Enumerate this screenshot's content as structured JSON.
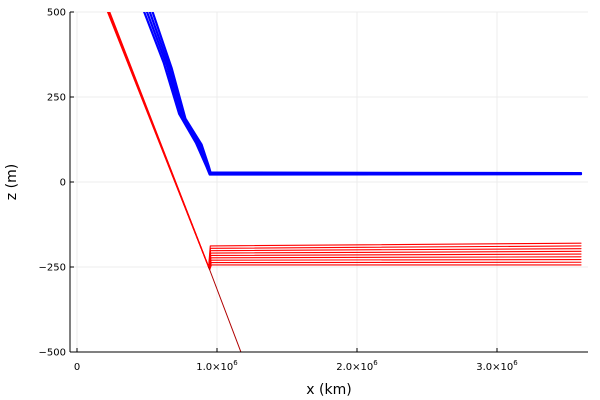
{
  "chart_data": {
    "type": "line",
    "title": "",
    "xlabel": "x (km)",
    "ylabel": "z (m)",
    "xlim": [
      -50000,
      3650000
    ],
    "ylim": [
      -500,
      500
    ],
    "grid": true,
    "legend": "none",
    "x_ticks": [
      {
        "value": 0,
        "text": "0",
        "sup": ""
      },
      {
        "value": 1000000,
        "text": "1.0×10",
        "sup": "6"
      },
      {
        "value": 2000000,
        "text": "2.0×10",
        "sup": "6"
      },
      {
        "value": 3000000,
        "text": "3.0×10",
        "sup": "6"
      }
    ],
    "y_ticks": [
      {
        "value": -500,
        "text": "−500"
      },
      {
        "value": -250,
        "text": "−250"
      },
      {
        "value": 0,
        "text": "0"
      },
      {
        "value": 250,
        "text": "250"
      },
      {
        "value": 500,
        "text": "500"
      }
    ],
    "blue_color": "#0000ff",
    "red_color": "#ff0000",
    "darkred_color": "#b00000",
    "series": [
      {
        "group": "blue",
        "color": "#0000ff",
        "width": 2.2,
        "values": [
          [
            480000,
            500
          ],
          [
            620000,
            350
          ],
          [
            730000,
            200
          ],
          [
            850000,
            115
          ],
          [
            925000,
            45
          ],
          [
            948000,
            22
          ],
          [
            3600000,
            23
          ]
        ]
      },
      {
        "group": "blue",
        "color": "#0000ff",
        "width": 2.2,
        "values": [
          [
            500000,
            500
          ],
          [
            640000,
            345
          ],
          [
            745000,
            195
          ],
          [
            865000,
            113
          ],
          [
            930000,
            46
          ],
          [
            950000,
            24
          ],
          [
            3600000,
            24
          ]
        ]
      },
      {
        "group": "blue",
        "color": "#0000ff",
        "width": 2.2,
        "values": [
          [
            520000,
            500
          ],
          [
            658000,
            340
          ],
          [
            760000,
            190
          ],
          [
            878000,
            112
          ],
          [
            935000,
            47
          ],
          [
            952000,
            26
          ],
          [
            3600000,
            25
          ]
        ]
      },
      {
        "group": "blue",
        "color": "#0000ff",
        "width": 2.2,
        "values": [
          [
            540000,
            500
          ],
          [
            676000,
            335
          ],
          [
            775000,
            186
          ],
          [
            890000,
            110
          ],
          [
            940000,
            48
          ],
          [
            954000,
            28
          ],
          [
            3600000,
            26
          ]
        ]
      },
      {
        "group": "red",
        "color": "#ff0000",
        "width": 1.1,
        "values": [
          [
            218000,
            500
          ],
          [
            940000,
            -250
          ],
          [
            952000,
            -188
          ],
          [
            3600000,
            -180
          ]
        ]
      },
      {
        "group": "red",
        "color": "#ff0000",
        "width": 1.1,
        "values": [
          [
            220000,
            500
          ],
          [
            941000,
            -251
          ],
          [
            953000,
            -195
          ],
          [
            3600000,
            -188
          ]
        ]
      },
      {
        "group": "red",
        "color": "#ff0000",
        "width": 1.1,
        "values": [
          [
            222000,
            500
          ],
          [
            942000,
            -252
          ],
          [
            954000,
            -202
          ],
          [
            3600000,
            -196
          ]
        ]
      },
      {
        "group": "red",
        "color": "#ff0000",
        "width": 1.1,
        "values": [
          [
            224000,
            500
          ],
          [
            943000,
            -253
          ],
          [
            955000,
            -209
          ],
          [
            3600000,
            -204
          ]
        ]
      },
      {
        "group": "red",
        "color": "#ff0000",
        "width": 1.1,
        "values": [
          [
            226000,
            500
          ],
          [
            944000,
            -254
          ],
          [
            956000,
            -216
          ],
          [
            3600000,
            -212
          ]
        ]
      },
      {
        "group": "red",
        "color": "#ff0000",
        "width": 1.1,
        "values": [
          [
            228000,
            500
          ],
          [
            945000,
            -255
          ],
          [
            957000,
            -223
          ],
          [
            3600000,
            -220
          ]
        ]
      },
      {
        "group": "red",
        "color": "#ff0000",
        "width": 1.1,
        "values": [
          [
            230000,
            500
          ],
          [
            946000,
            -256
          ],
          [
            958000,
            -230
          ],
          [
            3600000,
            -228
          ]
        ]
      },
      {
        "group": "red",
        "color": "#ff0000",
        "width": 1.1,
        "values": [
          [
            232000,
            500
          ],
          [
            947000,
            -257
          ],
          [
            959000,
            -237
          ],
          [
            3600000,
            -236
          ]
        ]
      },
      {
        "group": "red",
        "color": "#ff0000",
        "width": 1.1,
        "values": [
          [
            234000,
            500
          ],
          [
            948000,
            -258
          ],
          [
            960000,
            -244
          ],
          [
            3600000,
            -244
          ]
        ]
      },
      {
        "group": "darkred",
        "color": "#b00000",
        "width": 1.0,
        "values": [
          [
            940000,
            -250
          ],
          [
            1180000,
            -510
          ]
        ]
      }
    ]
  }
}
